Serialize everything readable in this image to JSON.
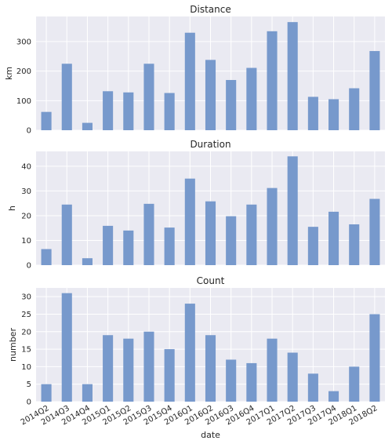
{
  "chart_data": [
    {
      "type": "bar",
      "title": "Distance",
      "xlabel": "",
      "ylabel": "km",
      "categories": [
        "2014Q2",
        "2014Q3",
        "2014Q4",
        "2015Q1",
        "2015Q2",
        "2015Q3",
        "2015Q4",
        "2016Q1",
        "2016Q2",
        "2016Q3",
        "2016Q4",
        "2017Q1",
        "2017Q2",
        "2017Q3",
        "2017Q4",
        "2018Q1",
        "2018Q2"
      ],
      "values": [
        62,
        225,
        25,
        132,
        128,
        225,
        126,
        330,
        238,
        170,
        211,
        335,
        366,
        113,
        105,
        142,
        268
      ],
      "ylim": [
        0,
        385
      ],
      "yticks": [
        0,
        100,
        200,
        300
      ],
      "grid": true,
      "color": "#7799cc"
    },
    {
      "type": "bar",
      "title": "Duration",
      "xlabel": "",
      "ylabel": "h",
      "categories": [
        "2014Q2",
        "2014Q3",
        "2014Q4",
        "2015Q1",
        "2015Q2",
        "2015Q3",
        "2015Q4",
        "2016Q1",
        "2016Q2",
        "2016Q3",
        "2016Q4",
        "2017Q1",
        "2017Q2",
        "2017Q3",
        "2017Q4",
        "2018Q1",
        "2018Q2"
      ],
      "values": [
        6.5,
        24.5,
        2.8,
        15.9,
        14,
        24.8,
        15.2,
        35,
        25.8,
        19.8,
        24.5,
        31.2,
        44,
        15.5,
        21.6,
        16.5,
        26.8
      ],
      "ylim": [
        0,
        46
      ],
      "yticks": [
        0,
        10,
        20,
        30,
        40
      ],
      "grid": true,
      "color": "#7799cc"
    },
    {
      "type": "bar",
      "title": "Count",
      "xlabel": "date",
      "ylabel": "number",
      "categories": [
        "2014Q2",
        "2014Q3",
        "2014Q4",
        "2015Q1",
        "2015Q2",
        "2015Q3",
        "2015Q4",
        "2016Q1",
        "2016Q2",
        "2016Q3",
        "2016Q4",
        "2017Q1",
        "2017Q2",
        "2017Q3",
        "2017Q4",
        "2018Q1",
        "2018Q2"
      ],
      "values": [
        5,
        31,
        5,
        19,
        18,
        20,
        15,
        28,
        19,
        12,
        11,
        18,
        14,
        8,
        3,
        10,
        25
      ],
      "ylim": [
        0,
        32.5
      ],
      "yticks": [
        0,
        5,
        10,
        15,
        20,
        25,
        30
      ],
      "grid": true,
      "color": "#7799cc"
    }
  ]
}
